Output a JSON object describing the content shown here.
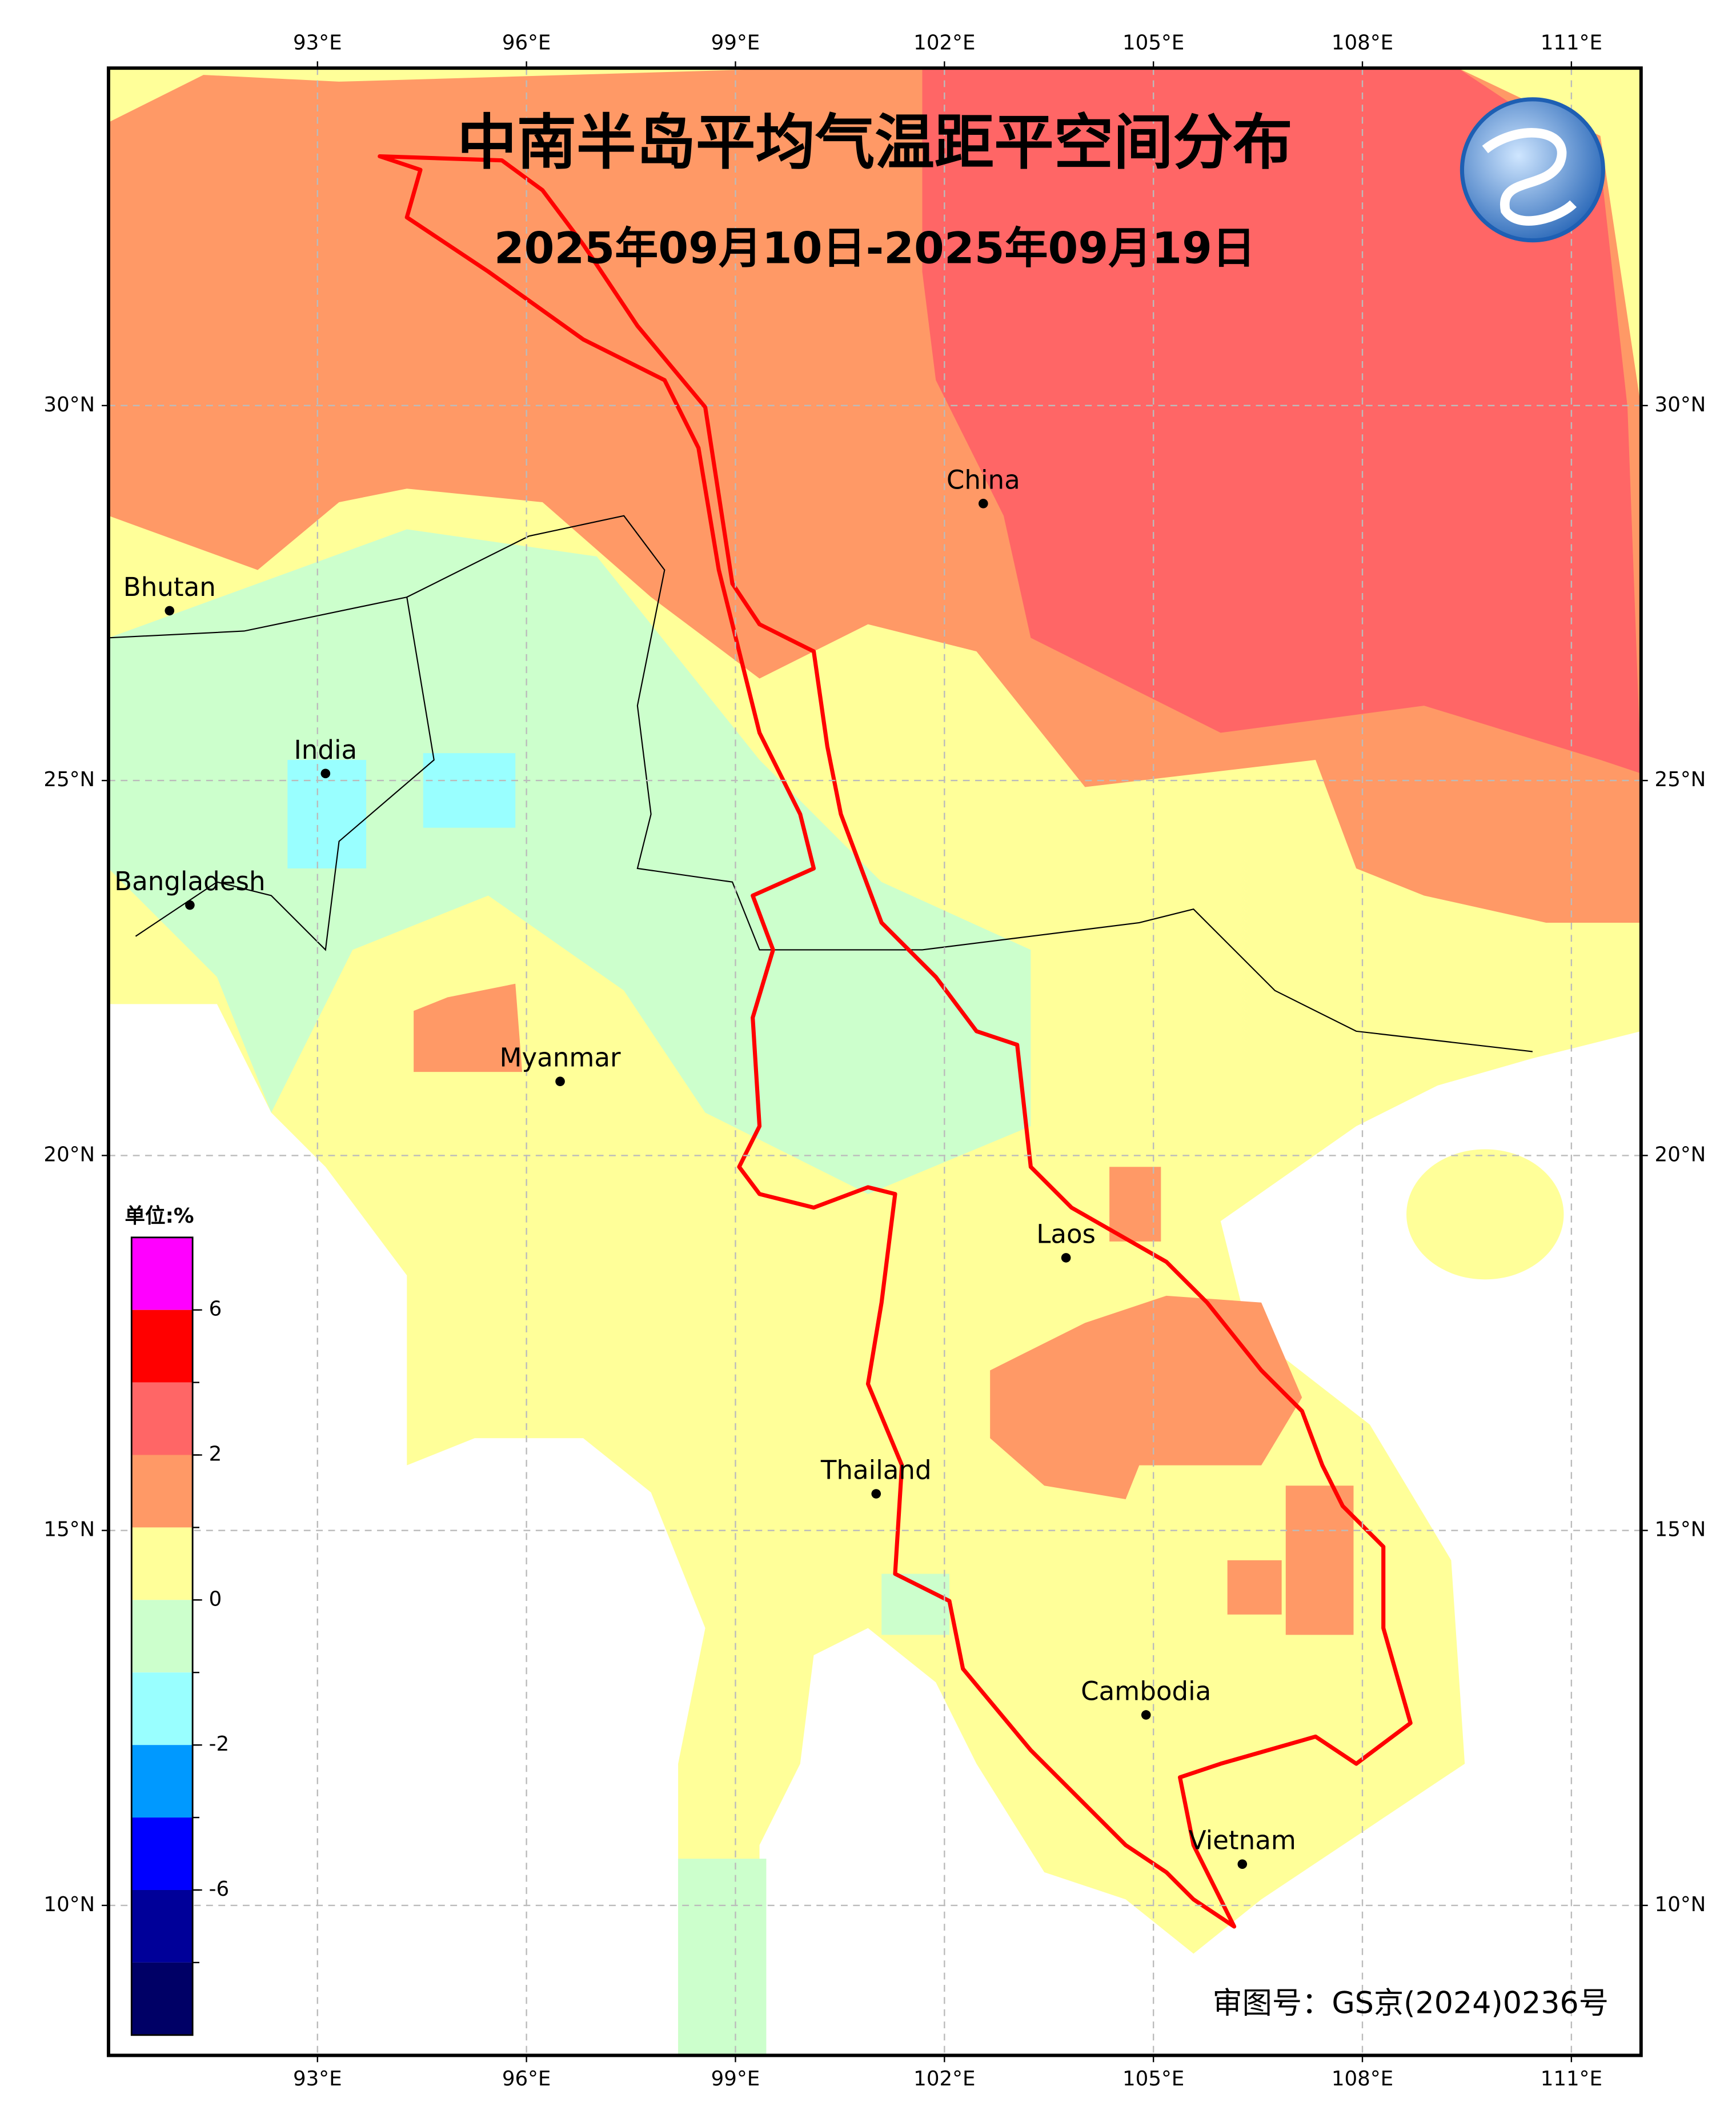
{
  "map": {
    "title": "中南半岛平均气温距平空间分布",
    "subtitle": "2025年09月10日-2025年09月19日",
    "xlim": [
      90,
      112
    ],
    "ylim": [
      8,
      34.5
    ],
    "xticks": [
      {
        "value": 93,
        "label": "93°E"
      },
      {
        "value": 96,
        "label": "96°E"
      },
      {
        "value": 99,
        "label": "99°E"
      },
      {
        "value": 102,
        "label": "102°E"
      },
      {
        "value": 105,
        "label": "105°E"
      },
      {
        "value": 108,
        "label": "108°E"
      },
      {
        "value": 111,
        "label": "111°E"
      }
    ],
    "yticks": [
      {
        "value": 10,
        "label": "10°N"
      },
      {
        "value": 15,
        "label": "15°N"
      },
      {
        "value": 20,
        "label": "20°N"
      },
      {
        "value": 25,
        "label": "25°N"
      },
      {
        "value": 30,
        "label": "30°N"
      }
    ],
    "grid": true,
    "places": [
      "China",
      "Bhutan",
      "India",
      "Bangladesh",
      "Myanmar",
      "Laos",
      "Thailand",
      "Cambodia",
      "Vietnam"
    ],
    "colorbar": {
      "unit": "单位:%",
      "colors": [
        "#ff00ff",
        "#ff0000",
        "#ff6666",
        "#ff9966",
        "#ffff99",
        "#ccffcc",
        "#99ffff",
        "#0099ff",
        "#0000ff",
        "#000099",
        "#000066"
      ],
      "ticks": [
        6,
        2,
        0,
        -2,
        -6
      ]
    },
    "approval": "审图号：GS京(2024)0236号"
  }
}
